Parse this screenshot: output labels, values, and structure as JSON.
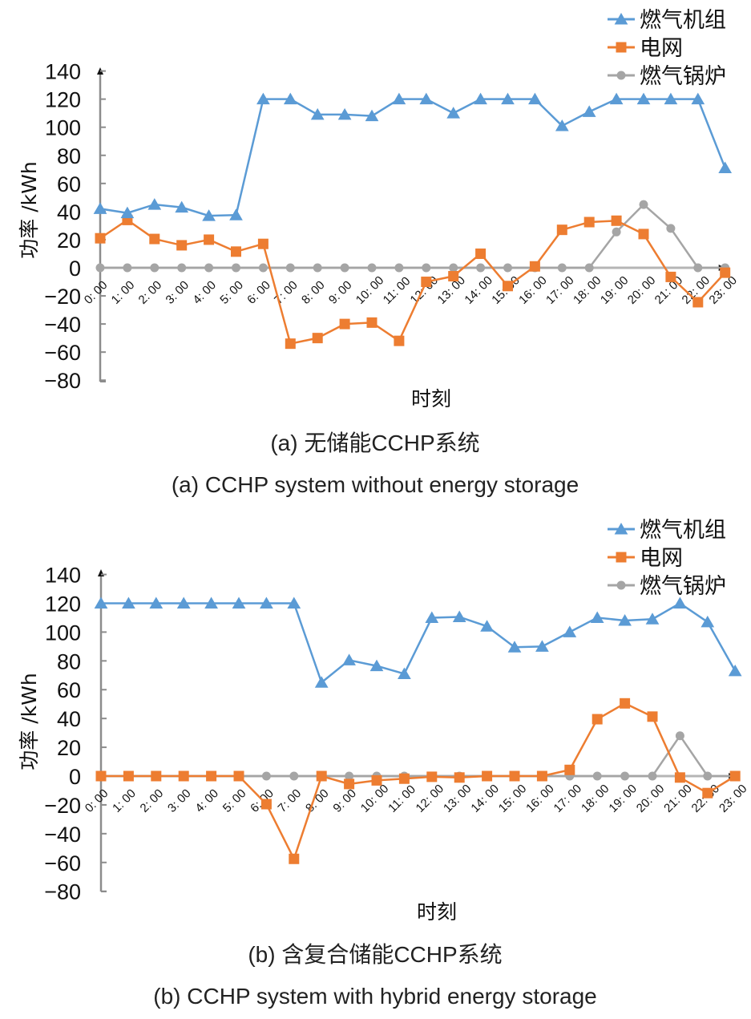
{
  "colors": {
    "gas_turbine": "#5b9bd5",
    "grid": "#ed7d31",
    "gas_boiler": "#a5a5a5",
    "axis": "#8c8c8c"
  },
  "chart_data": [
    {
      "type": "line",
      "title": "(a) 无储能CCHP系统",
      "subtitle": "(a) CCHP system without energy storage",
      "xlabel": "时刻",
      "ylabel": "功率 /kWh",
      "ylim": [
        -80,
        140
      ],
      "yticks": [
        140,
        120,
        100,
        80,
        60,
        40,
        20,
        0,
        -20,
        -40,
        -60,
        -80
      ],
      "ytick_labels": [
        "140",
        "120",
        "100",
        "80",
        "60",
        "40",
        "20",
        "0",
        "−20",
        "−40",
        "−60",
        "−80"
      ],
      "grid": false,
      "legend_position": "top-right",
      "categories": [
        "0: 00",
        "1: 00",
        "2: 00",
        "3: 00",
        "4: 00",
        "5: 00",
        "6: 00",
        "7: 00",
        "8: 00",
        "9: 00",
        "10: 00",
        "11: 00",
        "12: 00",
        "13: 00",
        "14: 00",
        "15: 00",
        "16: 00",
        "17: 00",
        "18: 00",
        "19: 00",
        "20: 00",
        "21: 00",
        "22: 00",
        "23: 00"
      ],
      "series": [
        {
          "name": "燃气机组",
          "marker": "triangle",
          "color_key": "gas_turbine",
          "values": [
            42,
            39,
            45,
            43,
            37,
            37.5,
            120,
            120,
            109,
            109,
            108,
            120,
            120,
            110,
            120,
            120,
            120,
            101,
            111,
            120,
            120,
            120,
            120,
            71
          ]
        },
        {
          "name": "电网",
          "marker": "square",
          "color_key": "grid",
          "values": [
            21,
            34,
            20.5,
            16,
            20,
            11.5,
            17,
            -54,
            -50,
            -40,
            -39,
            -52,
            -10,
            -6,
            10,
            -13,
            1,
            27,
            32.5,
            33.5,
            24,
            -6.5,
            -24.5,
            -3.5
          ]
        },
        {
          "name": "燃气锅炉",
          "marker": "circle",
          "color_key": "gas_boiler",
          "values": [
            0,
            0,
            0,
            0,
            0,
            0,
            0,
            0,
            0,
            0,
            0,
            0,
            0,
            0,
            0,
            0,
            0,
            0,
            0,
            25.5,
            45,
            28,
            0,
            0
          ]
        }
      ]
    },
    {
      "type": "line",
      "title": "(b) 含复合储能CCHP系统",
      "subtitle": "(b) CCHP system with hybrid energy storage",
      "xlabel": "时刻",
      "ylabel": "功率 /kWh",
      "ylim": [
        -80,
        140
      ],
      "yticks": [
        140,
        120,
        100,
        80,
        60,
        40,
        20,
        0,
        -20,
        -40,
        -60,
        -80
      ],
      "ytick_labels": [
        "140",
        "120",
        "100",
        "80",
        "60",
        "40",
        "20",
        "0",
        "−20",
        "−40",
        "−60",
        "−80"
      ],
      "grid": false,
      "legend_position": "top-right",
      "categories": [
        "0: 00",
        "1: 00",
        "2: 00",
        "3: 00",
        "4: 00",
        "5: 00",
        "6: 00",
        "7: 00",
        "8: 00",
        "9: 00",
        "10: 00",
        "11: 00",
        "12: 00",
        "13: 00",
        "14: 00",
        "15: 00",
        "16: 00",
        "17: 00",
        "18: 00",
        "19: 00",
        "20: 00",
        "21: 00",
        "22: 00",
        "23: 00"
      ],
      "series": [
        {
          "name": "燃气机组",
          "marker": "triangle",
          "color_key": "gas_turbine",
          "values": [
            120,
            120,
            120,
            120,
            120,
            120,
            120,
            120,
            65,
            80.5,
            76.5,
            71,
            110,
            110.5,
            104,
            89.5,
            90,
            100,
            110,
            108,
            109,
            120,
            107,
            73
          ]
        },
        {
          "name": "电网",
          "marker": "square",
          "color_key": "grid",
          "values": [
            0,
            0,
            0,
            0,
            0,
            0,
            -19.5,
            -57.5,
            0,
            -5.5,
            -3,
            -1.8,
            -0.5,
            -1,
            0,
            0,
            0,
            4.3,
            39.5,
            50.5,
            41.3,
            -1,
            -11.8,
            0
          ]
        },
        {
          "name": "燃气锅炉",
          "marker": "circle",
          "color_key": "gas_boiler",
          "values": [
            0,
            0,
            0,
            0,
            0,
            0,
            0,
            0,
            0,
            0,
            0,
            0,
            0,
            0,
            0,
            0,
            0,
            0,
            0,
            0,
            0,
            28,
            0,
            0
          ]
        }
      ]
    }
  ]
}
